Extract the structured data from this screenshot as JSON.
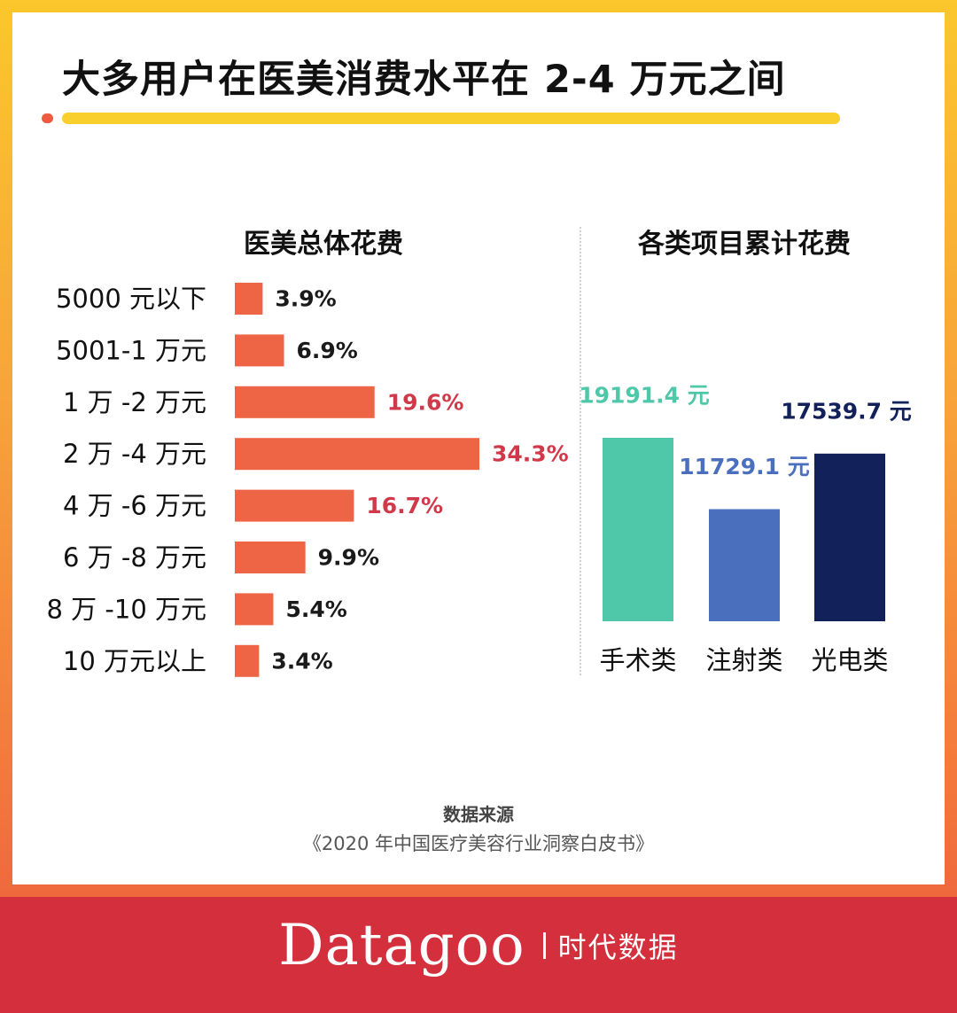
{
  "headline": "大多用户在医美消费水平在 2-4 万元之间",
  "colors": {
    "left_bar": "#ee6546",
    "left_label_dark": "#1a1a1a",
    "left_label_highlight": "#d0394a",
    "surgical": "#4ec8a8",
    "injection": "#4a6fbd",
    "photoelectric": "#13215a"
  },
  "chart_data": [
    {
      "type": "bar",
      "orientation": "horizontal",
      "title": "医美总体花费",
      "categories": [
        "5000 元以下",
        "5001-1 万元",
        "1 万 -2 万元",
        "2 万 -4 万元",
        "4 万 -6 万元",
        "6 万 -8 万元",
        "8 万 -10 万元",
        "10 万元以上"
      ],
      "values": [
        3.9,
        6.9,
        19.6,
        34.3,
        16.7,
        9.9,
        5.4,
        3.4
      ],
      "value_labels": [
        "3.9%",
        "6.9%",
        "19.6%",
        "34.3%",
        "16.7%",
        "9.9%",
        "5.4%",
        "3.4%"
      ],
      "highlighted": [
        false,
        false,
        true,
        true,
        true,
        false,
        false,
        false
      ],
      "unit": "%",
      "xlim": [
        0,
        34.3
      ]
    },
    {
      "type": "bar",
      "orientation": "vertical",
      "title": "各类项目累计花费",
      "categories": [
        "手术类",
        "注射类",
        "光电类"
      ],
      "values": [
        19191.4,
        11729.1,
        17539.7
      ],
      "value_labels": [
        "19191.4 元",
        "11729.1 元",
        "17539.7 元"
      ],
      "unit": "元",
      "ylim": [
        0,
        19191.4
      ]
    }
  ],
  "source": {
    "title": "数据来源",
    "text": "《2020 年中国医疗美容行业洞察白皮书》"
  },
  "brand": {
    "name": "Datagoo",
    "subtitle": "时代数据"
  }
}
